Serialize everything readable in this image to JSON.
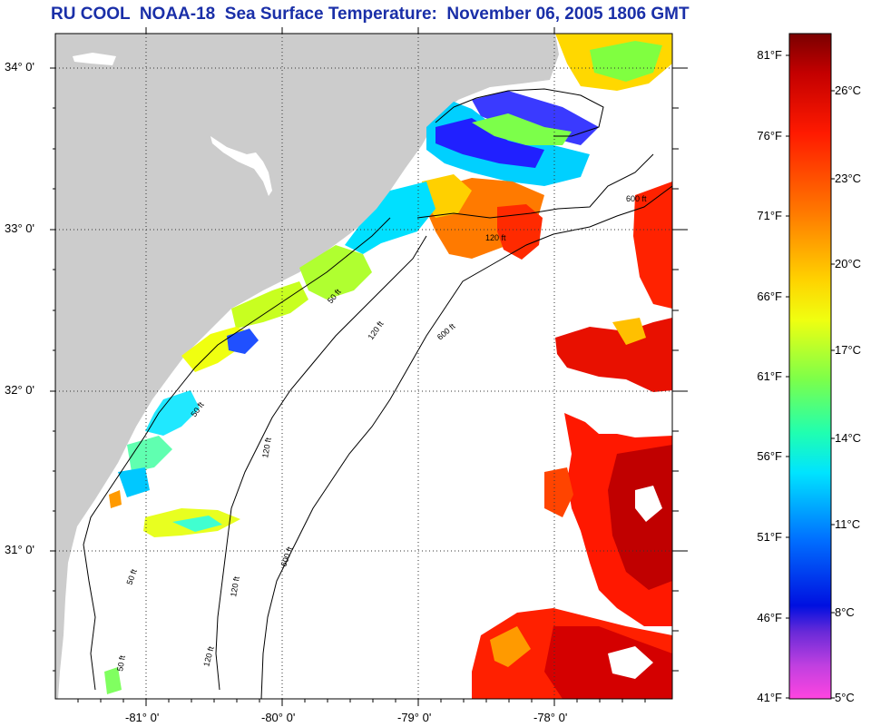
{
  "title": "RU COOL  NOAA-18  Sea Surface Temperature:  November 06, 2005 1806 GMT",
  "map": {
    "lat_labels": [
      "34° 0'",
      "33° 0'",
      "32° 0'",
      "31° 0'"
    ],
    "lon_labels": [
      "-81° 0'",
      "-80° 0'",
      "-79° 0'",
      "-78° 0'"
    ],
    "contour_labels": [
      "50 ft",
      "120 ft",
      "600 ft"
    ],
    "colors": {
      "land": "#cccccc",
      "water_clouds": "#ffffff"
    }
  },
  "colorbar": {
    "fahrenheit": [
      "81°F",
      "76°F",
      "71°F",
      "66°F",
      "61°F",
      "56°F",
      "51°F",
      "46°F",
      "41°F"
    ],
    "celsius": [
      "26°C",
      "23°C",
      "20°C",
      "17°C",
      "14°C",
      "11°C",
      "8°C",
      "5°C"
    ],
    "range_c": [
      5,
      28
    ]
  }
}
